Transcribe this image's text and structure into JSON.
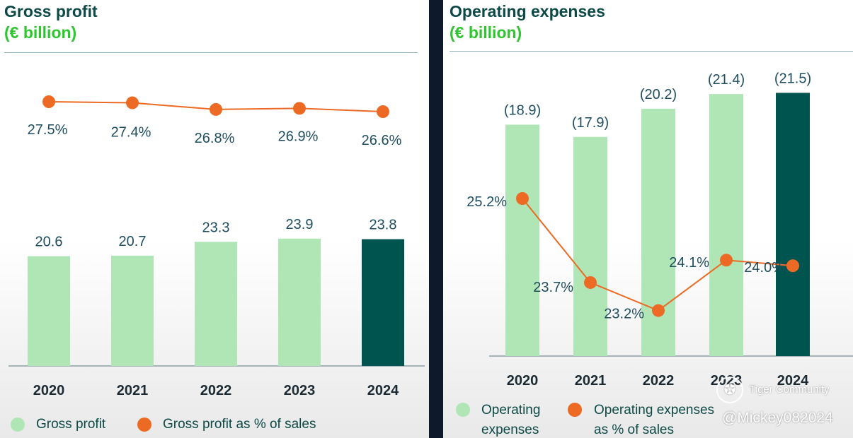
{
  "colors": {
    "bar_light": "#b0e6b6",
    "bar_highlight": "#005450",
    "line": "#ec6a23",
    "title": "#0d4a47",
    "subtitle": "#2ec52e",
    "label": "#1f4e5f"
  },
  "left": {
    "title": "Gross profit",
    "subtitle": "(€ billion)",
    "legend": [
      {
        "label": "Gross profit",
        "color": "#b0e6b6"
      },
      {
        "label": "Gross profit as % of sales",
        "color": "#ec6a23"
      }
    ]
  },
  "right": {
    "title": "Operating expenses",
    "subtitle": "(€ billion)",
    "legend": [
      {
        "label_line1": "Operating",
        "label_line2": "expenses",
        "color": "#b0e6b6"
      },
      {
        "label_line1": "Operating expenses",
        "label_line2": "as % of sales",
        "color": "#ec6a23"
      }
    ]
  },
  "chart_data": [
    {
      "type": "bar",
      "title": "Gross profit (€ billion)",
      "categories": [
        "2020",
        "2021",
        "2022",
        "2023",
        "2024"
      ],
      "series": [
        {
          "name": "Gross profit",
          "values": [
            20.6,
            20.7,
            23.3,
            23.9,
            23.8
          ],
          "labels": [
            "20.6",
            "20.7",
            "23.3",
            "23.9",
            "23.8"
          ]
        },
        {
          "name": "Gross profit as % of sales",
          "type": "line",
          "values": [
            27.5,
            27.4,
            26.8,
            26.9,
            26.6
          ],
          "labels": [
            "27.5%",
            "27.4%",
            "26.8%",
            "26.9%",
            "26.6%"
          ]
        }
      ],
      "highlight_index": 4
    },
    {
      "type": "bar",
      "title": "Operating expenses (€ billion)",
      "categories": [
        "2020",
        "2021",
        "2022",
        "2023",
        "2024"
      ],
      "series": [
        {
          "name": "Operating expenses",
          "values": [
            18.9,
            17.9,
            20.2,
            21.4,
            21.5
          ],
          "labels": [
            "(18.9)",
            "(17.9)",
            "(20.2)",
            "(21.4)",
            "(21.5)"
          ]
        },
        {
          "name": "Operating expenses as % of sales",
          "type": "line",
          "values": [
            25.2,
            23.7,
            23.2,
            24.1,
            24.0
          ],
          "labels": [
            "25.2%",
            "23.7%",
            "23.2%",
            "24.1%",
            "24.0%"
          ]
        }
      ],
      "highlight_index": 4
    }
  ],
  "watermark": {
    "brand": "Tiger Community",
    "user": "@Mickey082024"
  }
}
